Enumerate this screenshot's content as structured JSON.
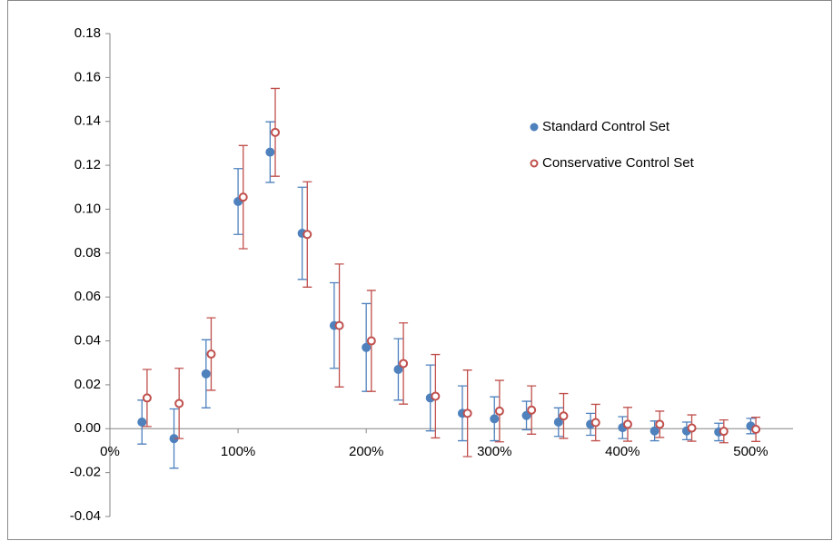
{
  "chart_data": {
    "type": "scatter",
    "xlim": [
      0,
      533
    ],
    "xticks": [
      {
        "value": 0,
        "label": "0%"
      },
      {
        "value": 100,
        "label": "100%"
      },
      {
        "value": 200,
        "label": "200%"
      },
      {
        "value": 300,
        "label": "300%"
      },
      {
        "value": 400,
        "label": "400%"
      },
      {
        "value": 500,
        "label": "500%"
      }
    ],
    "ylim": [
      -0.04,
      0.18
    ],
    "yticks": [
      0.18,
      0.16,
      0.14,
      0.12,
      {
        "value": 0.1,
        "label": "0.10"
      },
      0.08,
      0.06,
      0.04,
      0.02,
      {
        "value": 0,
        "label": "0.00"
      },
      -0.02,
      -0.04
    ],
    "legend": "upper right",
    "series": [
      {
        "name": "Standard Control Set",
        "color": "#4f81bd",
        "marker": "filled",
        "x": [
          25,
          50,
          75,
          100,
          125,
          150,
          175,
          200,
          225,
          250,
          275,
          300,
          325,
          350,
          375,
          400,
          425,
          450,
          475,
          500
        ],
        "values": [
          0.003,
          -0.0045,
          0.025,
          0.1035,
          0.126,
          0.089,
          0.047,
          0.037,
          0.027,
          0.014,
          0.007,
          0.0045,
          0.006,
          0.003,
          0.002,
          0.0005,
          -0.001,
          -0.001,
          -0.0015,
          0.0012
        ],
        "errors": [
          0.01,
          0.0135,
          0.0155,
          0.015,
          0.0138,
          0.021,
          0.0195,
          0.02,
          0.014,
          0.015,
          0.0125,
          0.01,
          0.0065,
          0.0065,
          0.005,
          0.005,
          0.0045,
          0.004,
          0.004,
          0.0035
        ]
      },
      {
        "name": "Conservative Control Set",
        "color": "#c0504d",
        "marker": "hollow",
        "x": [
          29,
          54,
          79,
          104,
          129,
          154,
          179,
          204,
          229,
          254,
          279,
          304,
          329,
          354,
          379,
          404,
          429,
          454,
          479,
          504
        ],
        "values": [
          0.014,
          0.0115,
          0.034,
          0.1055,
          0.135,
          0.0885,
          0.047,
          0.04,
          0.0297,
          0.0148,
          0.007,
          0.008,
          0.0085,
          0.0058,
          0.0028,
          0.002,
          0.002,
          0.0003,
          -0.0012,
          -0.0003
        ],
        "errors": [
          0.013,
          0.016,
          0.0165,
          0.0235,
          0.02,
          0.024,
          0.028,
          0.023,
          0.0185,
          0.019,
          0.0197,
          0.014,
          0.011,
          0.0102,
          0.0083,
          0.0077,
          0.006,
          0.006,
          0.0052,
          0.0055
        ]
      }
    ]
  }
}
